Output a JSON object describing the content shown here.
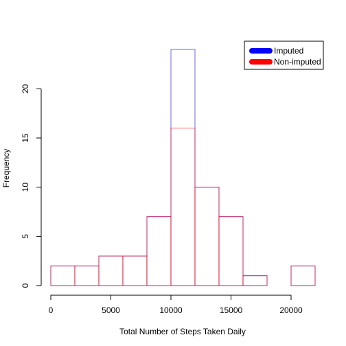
{
  "chart_data": {
    "type": "bar",
    "xlabel": "Total Number of Steps Taken Daily",
    "ylabel": "Frequency",
    "bin_edges": [
      0,
      2000,
      4000,
      6000,
      8000,
      10000,
      12000,
      14000,
      16000,
      18000,
      20000,
      22000
    ],
    "xlim": [
      0,
      22000
    ],
    "ylim": [
      0,
      24
    ],
    "xticks": [
      0,
      5000,
      10000,
      15000,
      20000
    ],
    "yticks": [
      0,
      5,
      10,
      15,
      20
    ],
    "xtick_labels": [
      "0",
      "5000",
      "10000",
      "15000",
      "20000"
    ],
    "ytick_labels": [
      "0",
      "5",
      "10",
      "15",
      "20"
    ],
    "grid": false,
    "legend_position": "top-right",
    "series": [
      {
        "name": "Imputed",
        "color": "#0000ff",
        "values": [
          2,
          2,
          3,
          3,
          7,
          24,
          10,
          7,
          1,
          0,
          2
        ]
      },
      {
        "name": "Non-imputed",
        "color": "#ff0000",
        "values": [
          2,
          2,
          3,
          3,
          7,
          16,
          10,
          7,
          1,
          0,
          2
        ]
      }
    ]
  }
}
